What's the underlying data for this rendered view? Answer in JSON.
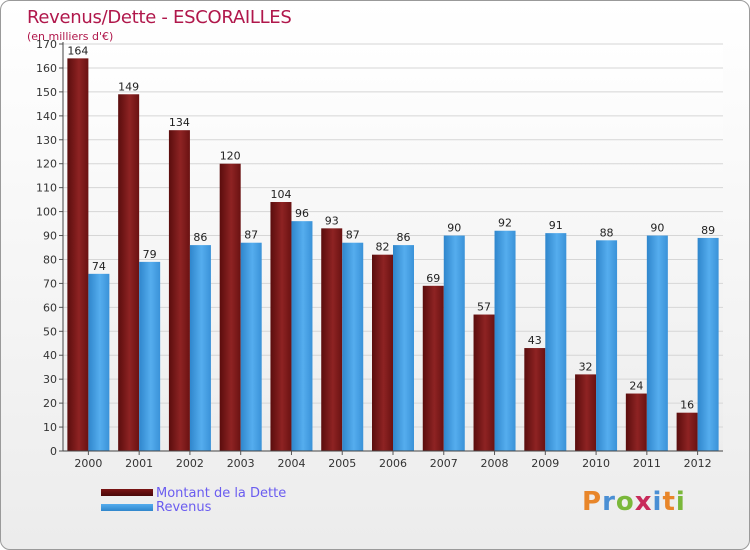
{
  "title": "Revenus/Dette - ESCORAILLES",
  "subtitle": "(en milliers d'€)",
  "legend": {
    "debt": "Montant de la Dette",
    "revenue": "Revenus"
  },
  "logo": {
    "text": "Proxiti",
    "letter_colors": [
      "#e8862a",
      "#4a8fd4",
      "#7ab83a",
      "#c82a5a",
      "#4a8fd4",
      "#e8862a",
      "#7ab83a"
    ]
  },
  "colors": {
    "debt": "#8b1a1a",
    "revenue": "#4aa3e6",
    "title": "#b0174b",
    "legend_text": "#6a5cf0"
  },
  "chart_data": {
    "type": "bar",
    "categories": [
      "2000",
      "2001",
      "2002",
      "2003",
      "2004",
      "2005",
      "2006",
      "2007",
      "2008",
      "2009",
      "2010",
      "2011",
      "2012"
    ],
    "series": [
      {
        "name": "Montant de la Dette",
        "values": [
          164,
          149,
          134,
          120,
          104,
          93,
          82,
          69,
          57,
          43,
          32,
          24,
          16
        ]
      },
      {
        "name": "Revenus",
        "values": [
          74,
          79,
          86,
          87,
          96,
          87,
          86,
          90,
          92,
          91,
          88,
          90,
          89
        ]
      }
    ],
    "ylim": [
      0,
      170
    ],
    "yticks": [
      0,
      10,
      20,
      30,
      40,
      50,
      60,
      70,
      80,
      90,
      100,
      110,
      120,
      130,
      140,
      150,
      160,
      170
    ],
    "grid": true,
    "legend_position": "bottom-left"
  }
}
